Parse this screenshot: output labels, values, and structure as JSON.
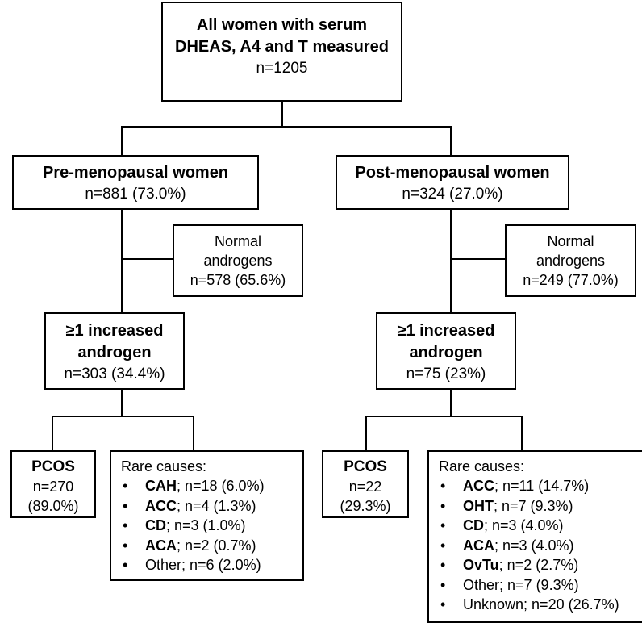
{
  "root": {
    "line1": "All women with serum",
    "line2": "DHEAS, A4 and T measured",
    "count": "n=1205"
  },
  "pre": {
    "title": "Pre-menopausal women",
    "count": "n=881 (73.0%)",
    "normal": {
      "line1": "Normal",
      "line2": "androgens",
      "count": "n=578 (65.6%)"
    },
    "increased": {
      "line1": "≥1 increased",
      "line2": "androgen",
      "count": "n=303 (34.4%)"
    },
    "pcos": {
      "title": "PCOS",
      "count": "n=270",
      "pct": "(89.0%)"
    },
    "rare": {
      "title": "Rare causes:",
      "items": [
        {
          "name": "CAH",
          "value": "; n=18 (6.0%)",
          "bold": true
        },
        {
          "name": "ACC",
          "value": "; n=4 (1.3%)",
          "bold": true
        },
        {
          "name": "CD",
          "value": "; n=3 (1.0%)",
          "bold": true
        },
        {
          "name": "ACA",
          "value": "; n=2 (0.7%)",
          "bold": true
        },
        {
          "name": "Other",
          "value": "; n=6 (2.0%)",
          "bold": false
        }
      ]
    }
  },
  "post": {
    "title": "Post-menopausal women",
    "count": "n=324 (27.0%)",
    "normal": {
      "line1": "Normal",
      "line2": "androgens",
      "count": "n=249 (77.0%)"
    },
    "increased": {
      "line1": "≥1 increased",
      "line2": "androgen",
      "count": "n=75 (23%)"
    },
    "pcos": {
      "title": "PCOS",
      "count": "n=22",
      "pct": "(29.3%)"
    },
    "rare": {
      "title": "Rare causes:",
      "items": [
        {
          "name": "ACC",
          "value": "; n=11 (14.7%)",
          "bold": true
        },
        {
          "name": "OHT",
          "value": "; n=7 (9.3%)",
          "bold": true
        },
        {
          "name": "CD",
          "value": "; n=3 (4.0%)",
          "bold": true
        },
        {
          "name": "ACA",
          "value": "; n=3 (4.0%)",
          "bold": true
        },
        {
          "name": "OvTu",
          "value": "; n=2 (2.7%)",
          "bold": true
        },
        {
          "name": "Other",
          "value": "; n=7 (9.3%)",
          "bold": false
        },
        {
          "name": "Unknown",
          "value": "; n=20 (26.7%)",
          "bold": false
        }
      ]
    }
  },
  "bullet": "•"
}
